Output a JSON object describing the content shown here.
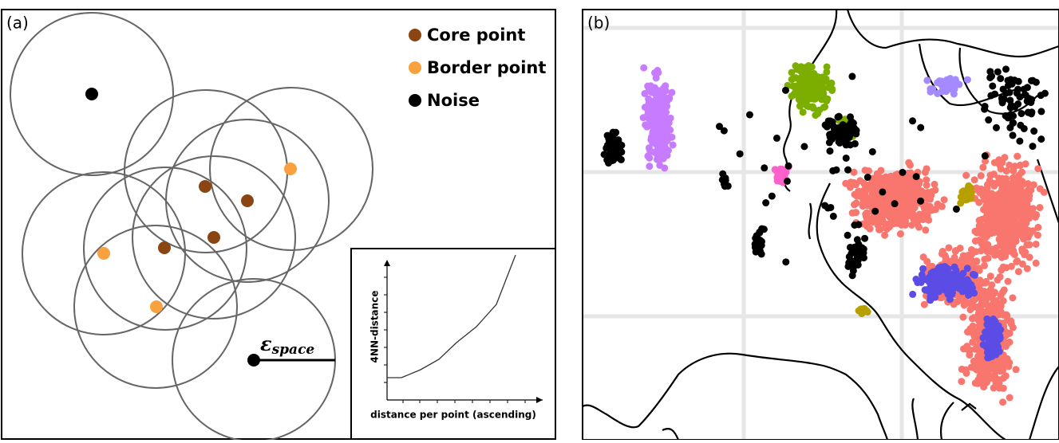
{
  "panel_a": {
    "label": "(a)",
    "legend": [
      "Core point",
      "Border point",
      "Noise"
    ],
    "epsilon": {
      "symbol": "ε",
      "subscript": "space"
    },
    "inset": {
      "y_label": "4NN-distance",
      "x_label": "distance per point (ascending)"
    }
  },
  "panel_b": {
    "label": "(b)"
  }
}
